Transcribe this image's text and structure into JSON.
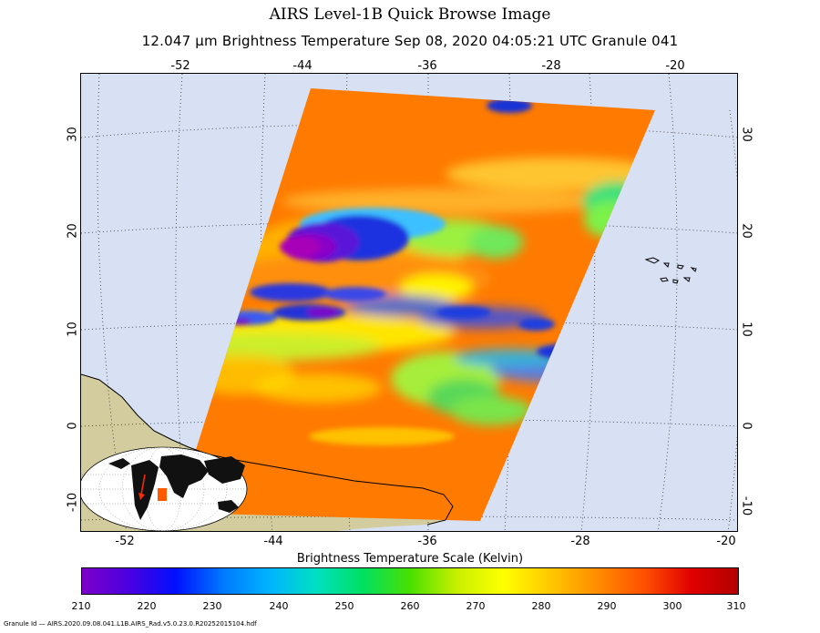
{
  "header": {
    "title": "AIRS Level-1B Quick Browse Image",
    "subtitle": "12.047 µm Brightness Temperature    Sep 08, 2020 04:05:21 UTC   Granule 041"
  },
  "map": {
    "lon_ticks_top": [
      "-52",
      "-44",
      "-36",
      "-28",
      "-20"
    ],
    "lon_ticks_bottom": [
      "-52",
      "-44",
      "-36",
      "-28",
      "-20"
    ],
    "lat_ticks_left": [
      "30",
      "20",
      "10",
      "0",
      "-10"
    ],
    "lat_ticks_right": [
      "30",
      "20",
      "10",
      "0",
      "-10"
    ],
    "colors": {
      "ocean": "#d8e0f4",
      "land": "#d3cc9e",
      "warm_surface": "#ff7a00",
      "cloud_cold": "#7a00c8"
    }
  },
  "colorbar": {
    "title": "Brightness Temperature Scale (Kelvin)",
    "ticks": [
      "210",
      "220",
      "230",
      "240",
      "250",
      "260",
      "270",
      "280",
      "290",
      "300",
      "310"
    ],
    "stops": [
      "#7d00c8",
      "#4a00e0",
      "#0010ff",
      "#0078ff",
      "#00b4ff",
      "#00e0c0",
      "#00e060",
      "#48e000",
      "#c8f000",
      "#ffff00",
      "#ffc800",
      "#ff8c00",
      "#ff5000",
      "#e00000",
      "#b40000"
    ]
  },
  "footer": {
    "granule_id": "Granule Id — AIRS.2020.09.08.041.L1B.AIRS_Rad.v5.0.23.0.R20252015104.hdf"
  }
}
